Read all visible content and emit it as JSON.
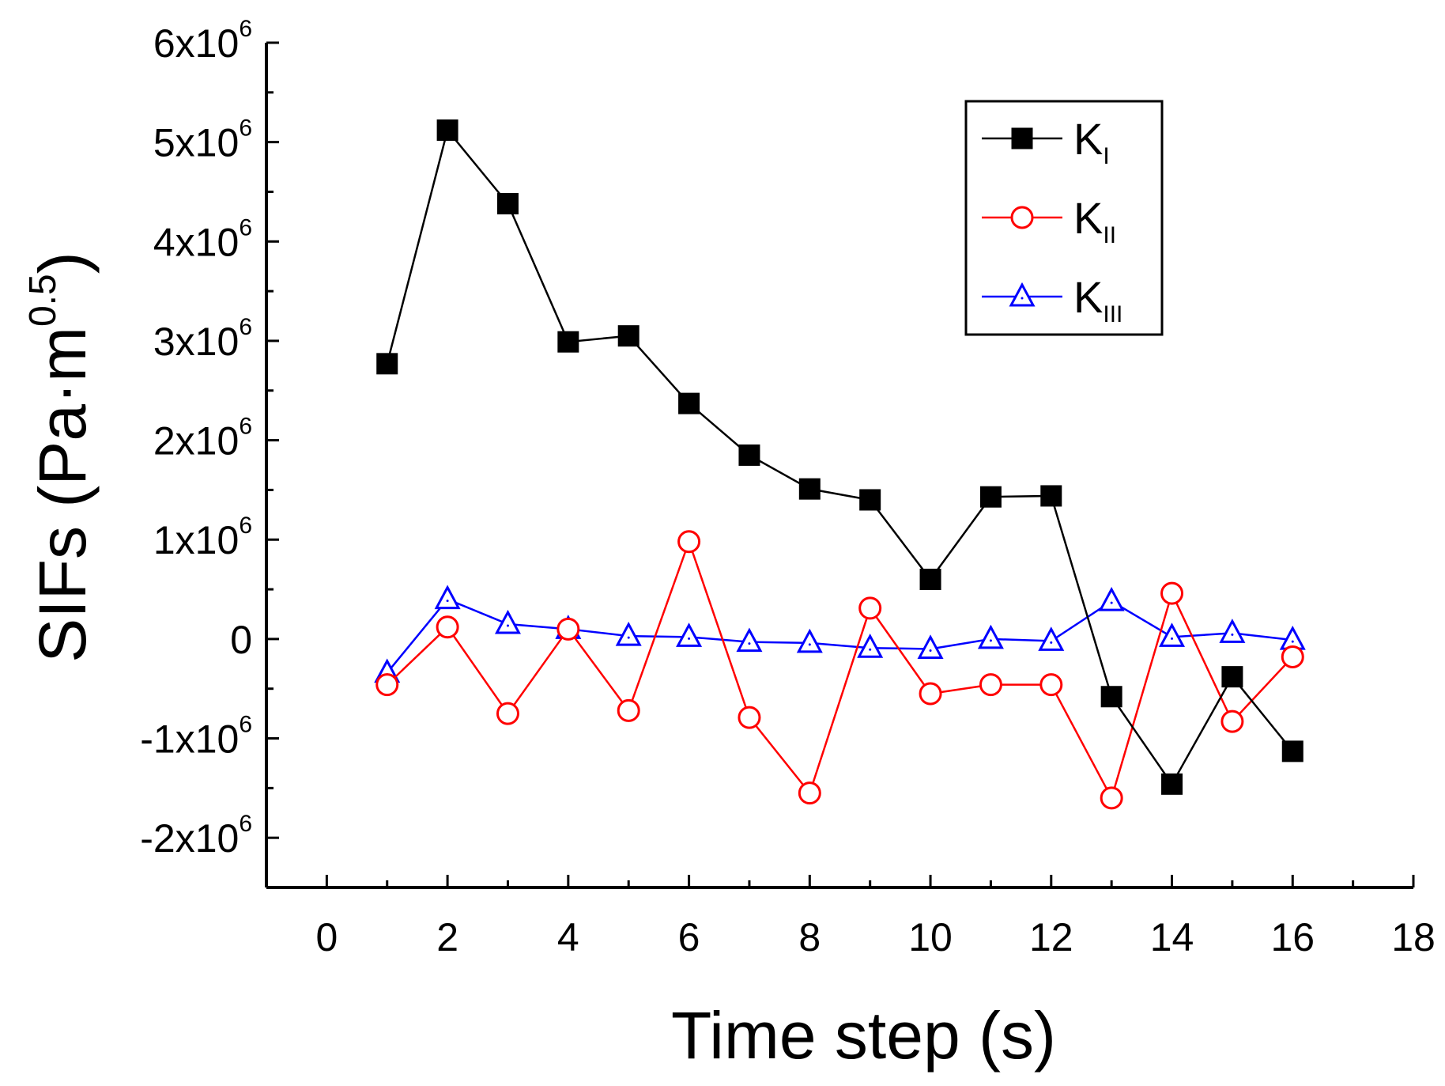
{
  "chart_data": {
    "type": "line",
    "title": "",
    "xlabel": "Time step (s)",
    "ylabel": {
      "main": "SIFs (Pa·m",
      "exponent": "0.5",
      "close": ")"
    },
    "xlim": [
      -1,
      18
    ],
    "ylim": [
      -2500000,
      6000000
    ],
    "x_ticks": [
      0,
      2,
      4,
      6,
      8,
      10,
      12,
      14,
      16,
      18
    ],
    "y_ticks": [
      {
        "value": 6000000,
        "mantissa": "6x10",
        "exp": "6"
      },
      {
        "value": 5000000,
        "mantissa": "5x10",
        "exp": "6"
      },
      {
        "value": 4000000,
        "mantissa": "4x10",
        "exp": "6"
      },
      {
        "value": 3000000,
        "mantissa": "3x10",
        "exp": "6"
      },
      {
        "value": 2000000,
        "mantissa": "2x10",
        "exp": "6"
      },
      {
        "value": 1000000,
        "mantissa": "1x10",
        "exp": "6"
      },
      {
        "value": 0,
        "mantissa": "0",
        "exp": ""
      },
      {
        "value": -1000000,
        "mantissa": "-1x10",
        "exp": "6"
      },
      {
        "value": -2000000,
        "mantissa": "-2x10",
        "exp": "6"
      }
    ],
    "grid": false,
    "legend_position": "top-right",
    "series": [
      {
        "name_main": "K",
        "name_sub": "I",
        "color": "#000000",
        "marker": "square-filled",
        "x": [
          1,
          2,
          3,
          4,
          5,
          6,
          7,
          8,
          9,
          10,
          11,
          12,
          13,
          14,
          15,
          16
        ],
        "y": [
          2770000,
          5120000,
          4380000,
          2990000,
          3050000,
          2370000,
          1850000,
          1510000,
          1400000,
          600000,
          1430000,
          1440000,
          -580000,
          -1460000,
          -380000,
          -1130000
        ]
      },
      {
        "name_main": "K",
        "name_sub": "II",
        "color": "#ff0000",
        "marker": "circle-open",
        "x": [
          1,
          2,
          3,
          4,
          5,
          6,
          7,
          8,
          9,
          10,
          11,
          12,
          13,
          14,
          15,
          16
        ],
        "y": [
          -460000,
          120000,
          -750000,
          100000,
          -720000,
          980000,
          -790000,
          -1550000,
          310000,
          -550000,
          -460000,
          -460000,
          -1600000,
          460000,
          -830000,
          -180000
        ]
      },
      {
        "name_main": "K",
        "name_sub": "III",
        "color": "#0000ff",
        "marker": "triangle-open",
        "x": [
          1,
          2,
          3,
          4,
          5,
          6,
          7,
          8,
          9,
          10,
          11,
          12,
          13,
          14,
          15,
          16
        ],
        "y": [
          -340000,
          400000,
          150000,
          100000,
          30000,
          20000,
          -30000,
          -40000,
          -90000,
          -100000,
          0,
          -20000,
          380000,
          20000,
          60000,
          -10000
        ]
      }
    ]
  }
}
